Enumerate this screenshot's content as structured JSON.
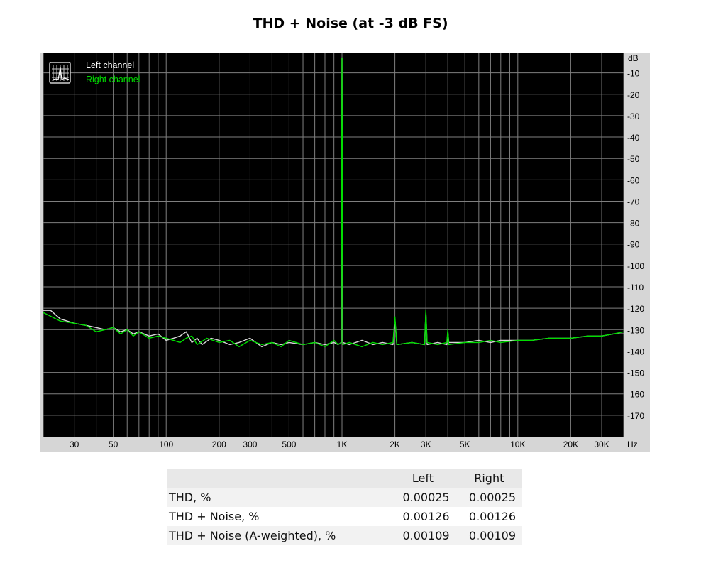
{
  "title": "THD + Noise (at -3 dB FS)",
  "colors": {
    "plot_background": "#000000",
    "frame": "#d6d6d6",
    "grid": "#7f7f7f",
    "left_channel": "#d8d8d8",
    "right_channel": "#00dd00",
    "legend_left_text": "#ffffff",
    "legend_right_text": "#00dd00"
  },
  "chart_data": {
    "type": "line",
    "x_scale": "log",
    "xlim": [
      20,
      40000
    ],
    "ylim": [
      -180,
      -0.5
    ],
    "xunit": "Hz",
    "yunit": "dB",
    "grid": true,
    "legend_position": "top-left",
    "x_ticks": [
      {
        "value": 30,
        "label": "30"
      },
      {
        "value": 50,
        "label": "50"
      },
      {
        "value": 100,
        "label": "100"
      },
      {
        "value": 200,
        "label": "200"
      },
      {
        "value": 300,
        "label": "300"
      },
      {
        "value": 500,
        "label": "500"
      },
      {
        "value": 1000,
        "label": "1K"
      },
      {
        "value": 2000,
        "label": "2K"
      },
      {
        "value": 3000,
        "label": "3K"
      },
      {
        "value": 5000,
        "label": "5K"
      },
      {
        "value": 10000,
        "label": "10K"
      },
      {
        "value": 20000,
        "label": "20K"
      },
      {
        "value": 30000,
        "label": "30K"
      }
    ],
    "x_gridlines": [
      20,
      30,
      40,
      50,
      60,
      70,
      80,
      90,
      100,
      200,
      300,
      400,
      500,
      600,
      700,
      800,
      900,
      1000,
      2000,
      3000,
      4000,
      5000,
      6000,
      7000,
      8000,
      9000,
      10000,
      20000,
      30000,
      40000
    ],
    "y_ticks": [
      -10,
      -20,
      -30,
      -40,
      -50,
      -60,
      -70,
      -80,
      -90,
      -100,
      -110,
      -120,
      -130,
      -140,
      -150,
      -160,
      -170
    ],
    "series": [
      {
        "name": "Left channel",
        "points": [
          [
            20,
            -121
          ],
          [
            22,
            -121
          ],
          [
            25,
            -125
          ],
          [
            30,
            -127
          ],
          [
            35,
            -128
          ],
          [
            40,
            -129
          ],
          [
            45,
            -130
          ],
          [
            50,
            -129
          ],
          [
            55,
            -131
          ],
          [
            60,
            -130
          ],
          [
            65,
            -132
          ],
          [
            70,
            -131
          ],
          [
            80,
            -133
          ],
          [
            90,
            -132
          ],
          [
            100,
            -135
          ],
          [
            110,
            -134
          ],
          [
            120,
            -133
          ],
          [
            130,
            -131
          ],
          [
            140,
            -136
          ],
          [
            150,
            -134
          ],
          [
            160,
            -137
          ],
          [
            180,
            -134
          ],
          [
            200,
            -135
          ],
          [
            230,
            -137
          ],
          [
            260,
            -136
          ],
          [
            300,
            -134
          ],
          [
            350,
            -138
          ],
          [
            400,
            -136
          ],
          [
            450,
            -137
          ],
          [
            500,
            -136
          ],
          [
            600,
            -137
          ],
          [
            700,
            -136
          ],
          [
            800,
            -137
          ],
          [
            900,
            -136
          ],
          [
            950,
            -137
          ],
          [
            990,
            -136
          ],
          [
            1000,
            -3
          ],
          [
            1010,
            -136
          ],
          [
            1100,
            -137
          ],
          [
            1300,
            -135
          ],
          [
            1500,
            -137
          ],
          [
            1700,
            -136
          ],
          [
            1950,
            -137
          ],
          [
            2000,
            -125
          ],
          [
            2050,
            -137
          ],
          [
            2500,
            -136
          ],
          [
            2950,
            -137
          ],
          [
            3000,
            -122
          ],
          [
            3050,
            -137
          ],
          [
            3500,
            -136
          ],
          [
            3950,
            -137
          ],
          [
            4000,
            -131
          ],
          [
            4050,
            -136
          ],
          [
            5000,
            -136
          ],
          [
            6000,
            -135
          ],
          [
            7000,
            -136
          ],
          [
            8000,
            -135
          ],
          [
            10000,
            -135
          ],
          [
            12000,
            -135
          ],
          [
            15000,
            -134
          ],
          [
            20000,
            -134
          ],
          [
            25000,
            -133
          ],
          [
            30000,
            -133
          ],
          [
            35000,
            -132
          ],
          [
            40000,
            -132
          ]
        ]
      },
      {
        "name": "Right channel",
        "points": [
          [
            20,
            -122
          ],
          [
            25,
            -126
          ],
          [
            30,
            -127
          ],
          [
            35,
            -128
          ],
          [
            40,
            -131
          ],
          [
            45,
            -130
          ],
          [
            50,
            -129
          ],
          [
            55,
            -132
          ],
          [
            60,
            -130
          ],
          [
            65,
            -133
          ],
          [
            70,
            -131
          ],
          [
            80,
            -134
          ],
          [
            90,
            -133
          ],
          [
            100,
            -134
          ],
          [
            110,
            -135
          ],
          [
            120,
            -136
          ],
          [
            130,
            -134
          ],
          [
            140,
            -133
          ],
          [
            150,
            -137
          ],
          [
            170,
            -134
          ],
          [
            200,
            -136
          ],
          [
            230,
            -135
          ],
          [
            260,
            -138
          ],
          [
            300,
            -135
          ],
          [
            350,
            -137
          ],
          [
            400,
            -136
          ],
          [
            450,
            -138
          ],
          [
            500,
            -135
          ],
          [
            600,
            -137
          ],
          [
            700,
            -136
          ],
          [
            800,
            -138
          ],
          [
            900,
            -135
          ],
          [
            950,
            -137
          ],
          [
            990,
            -136
          ],
          [
            1000,
            -3
          ],
          [
            1010,
            -137
          ],
          [
            1100,
            -136
          ],
          [
            1300,
            -138
          ],
          [
            1500,
            -136
          ],
          [
            1700,
            -137
          ],
          [
            1950,
            -136
          ],
          [
            2000,
            -124
          ],
          [
            2050,
            -137
          ],
          [
            2500,
            -136
          ],
          [
            2950,
            -137
          ],
          [
            3000,
            -121
          ],
          [
            3050,
            -136
          ],
          [
            3500,
            -137
          ],
          [
            3950,
            -136
          ],
          [
            4000,
            -130
          ],
          [
            4050,
            -137
          ],
          [
            5000,
            -136
          ],
          [
            6000,
            -136
          ],
          [
            7000,
            -135
          ],
          [
            8000,
            -136
          ],
          [
            10000,
            -135
          ],
          [
            12000,
            -135
          ],
          [
            15000,
            -134
          ],
          [
            20000,
            -134
          ],
          [
            25000,
            -133
          ],
          [
            30000,
            -133
          ],
          [
            35000,
            -132
          ],
          [
            40000,
            -131
          ]
        ]
      }
    ]
  },
  "table": {
    "columns": [
      "",
      "Left",
      "Right"
    ],
    "rows": [
      {
        "label": "THD, %",
        "left": "0.00025",
        "right": "0.00025"
      },
      {
        "label": "THD + Noise, %",
        "left": "0.00126",
        "right": "0.00126"
      },
      {
        "label": "THD + Noise (A-weighted), %",
        "left": "0.00109",
        "right": "0.00109"
      }
    ]
  }
}
